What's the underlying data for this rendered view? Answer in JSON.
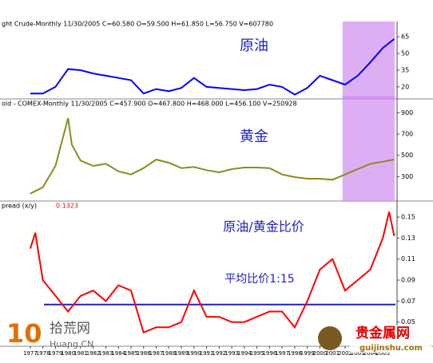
{
  "chart_data": [
    {
      "type": "line",
      "header": "ght Crude-Monthly  11/30/2005 C=60.580 O=59.500 H=61.850 L=56.750 V=607780",
      "label": "原油",
      "x": [
        1977,
        1978,
        1979,
        1980,
        1981,
        1982,
        1983,
        1984,
        1985,
        1986,
        1987,
        1988,
        1989,
        1990,
        1991,
        1992,
        1993,
        1994,
        1995,
        1996,
        1997,
        1998,
        1999,
        2000,
        2001,
        2002,
        2003,
        2004,
        2005,
        2005.9
      ],
      "series": [
        {
          "name": "Crude",
          "color": "#0000ff",
          "values": [
            14,
            14,
            20,
            36,
            35,
            32,
            30,
            28,
            26,
            14,
            18,
            16,
            19,
            28,
            20,
            19,
            18,
            17,
            18,
            22,
            20,
            13,
            19,
            30,
            26,
            22,
            30,
            42,
            55,
            63
          ]
        }
      ],
      "xlim": [
        1976.5,
        2006
      ],
      "ylim": [
        12,
        73
      ],
      "yticks": [
        20,
        35,
        50,
        65
      ],
      "highlight": [
        2001.8,
        2005.95
      ]
    },
    {
      "type": "line",
      "header": "old - COMEX-Monthly  11/30/2005 C=457.900 O=467.800 H=468.000 L=456.100 V=250928",
      "label": "黄金",
      "x": [
        1977,
        1978,
        1979,
        1980,
        1980.3,
        1981,
        1982,
        1983,
        1984,
        1985,
        1986,
        1987,
        1988,
        1989,
        1990,
        1991,
        1992,
        1993,
        1994,
        1995,
        1996,
        1997,
        1998,
        1999,
        2000,
        2001,
        2002,
        2003,
        2004,
        2005,
        2005.9
      ],
      "series": [
        {
          "name": "Gold",
          "color": "#8b8b1e",
          "values": [
            140,
            200,
            400,
            850,
            600,
            450,
            400,
            420,
            350,
            320,
            380,
            460,
            430,
            380,
            390,
            360,
            340,
            370,
            385,
            385,
            380,
            320,
            295,
            280,
            280,
            270,
            320,
            370,
            420,
            440,
            460
          ]
        }
      ],
      "xlim": [
        1976.5,
        2006
      ],
      "ylim": [
        100,
        1000
      ],
      "yticks": [
        300,
        500,
        700,
        900
      ],
      "highlight": [
        2001.8,
        2005.95
      ]
    },
    {
      "type": "line",
      "header": "pread (x/y)",
      "last_value": "0.1323",
      "label": "原油/黄金比价",
      "average_label": "平均比价1:15",
      "average": 0.0667,
      "x": [
        1977,
        1977.4,
        1978,
        1979,
        1980,
        1981,
        1982,
        1983,
        1984,
        1985,
        1986,
        1987,
        1988,
        1989,
        1990,
        1991,
        1992,
        1993,
        1994,
        1995,
        1996,
        1997,
        1998,
        1999,
        2000,
        2001,
        2002,
        2003,
        2004,
        2005,
        2005.5,
        2005.9
      ],
      "series": [
        {
          "name": "Spread",
          "color": "#ff0000",
          "values": [
            0.12,
            0.135,
            0.09,
            0.075,
            0.06,
            0.075,
            0.08,
            0.07,
            0.085,
            0.08,
            0.04,
            0.045,
            0.045,
            0.05,
            0.08,
            0.055,
            0.055,
            0.05,
            0.05,
            0.055,
            0.06,
            0.06,
            0.045,
            0.07,
            0.1,
            0.11,
            0.08,
            0.09,
            0.1,
            0.13,
            0.155,
            0.132
          ]
        }
      ],
      "xlim": [
        1976.5,
        2006
      ],
      "ylim": [
        0.03,
        0.163
      ],
      "yticks": [
        0.05,
        0.07,
        0.09,
        0.11,
        0.13,
        0.15
      ],
      "xticks": [
        1977,
        1978,
        1979,
        1980,
        1981,
        1982,
        1983,
        1984,
        1985,
        1986,
        1987,
        1988,
        1989,
        1990,
        1991,
        1992,
        1993,
        1994,
        1995,
        1996,
        1997,
        1998,
        1999,
        2000,
        2001,
        2002,
        2003,
        2004,
        2005
      ]
    }
  ],
  "watermarks": {
    "left_number": "10",
    "left_text": "拾荒网",
    "left_url": "Huang.CN",
    "right_text": "贵金属网",
    "right_url": "guijinshu.com"
  }
}
